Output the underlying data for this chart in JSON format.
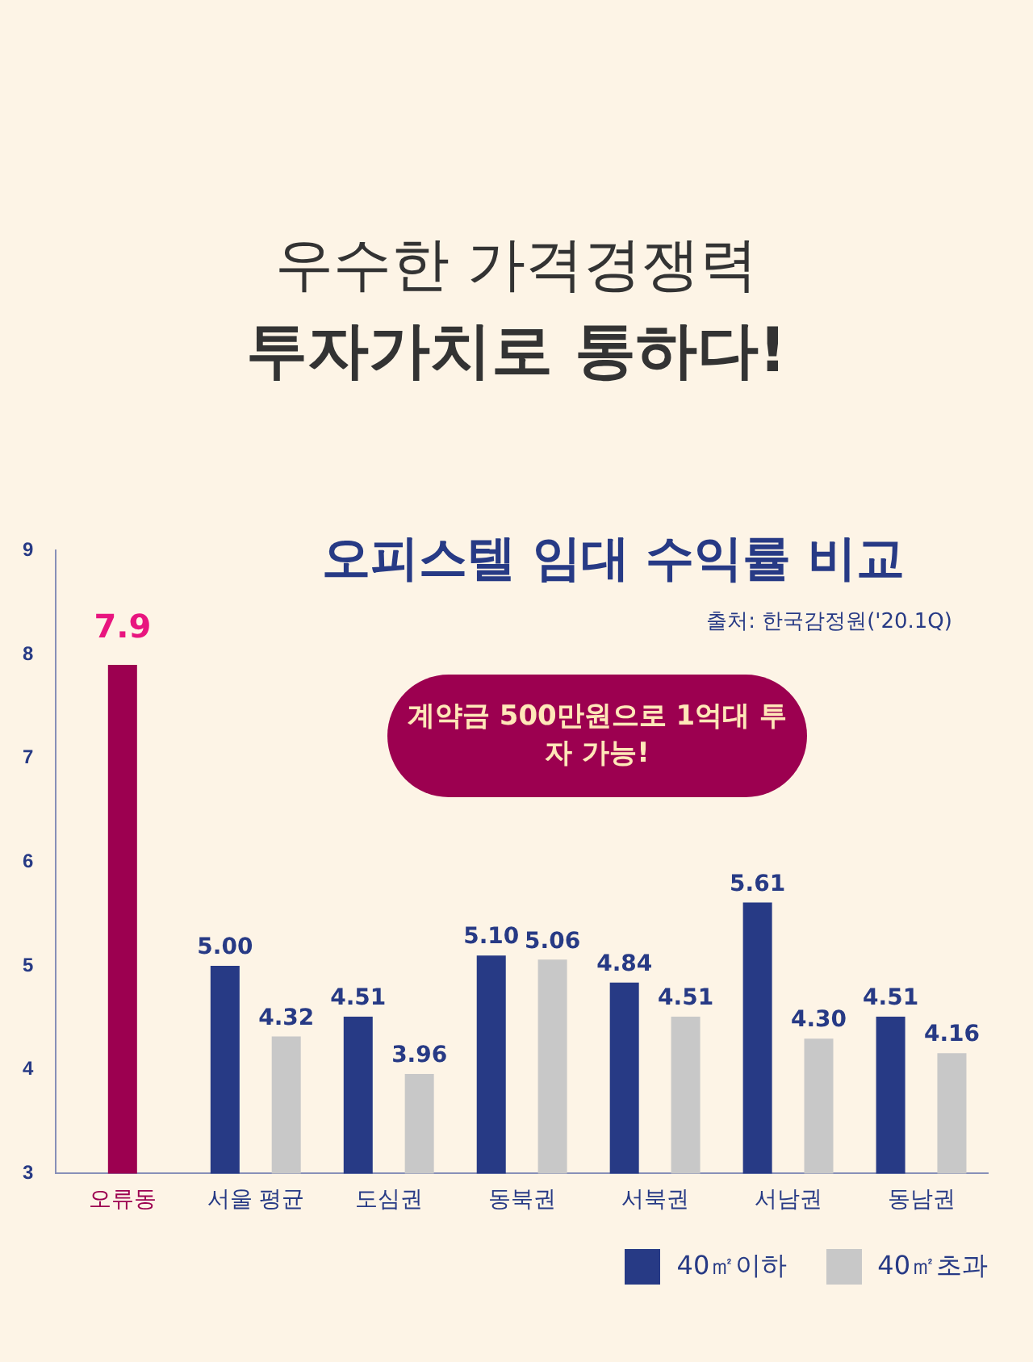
{
  "chart_data": {
    "type": "bar",
    "title": "오피스텔 임대 수익률 비교",
    "annotations": [
      "우수한 가격경쟁력",
      "투자가치로 통하다!",
      "출처: 한국감정원('20.1Q)",
      "계약금 500만원으로 1억대 투자 가능!"
    ],
    "categories": [
      "오류동",
      "서울 평균",
      "도심권",
      "동북권",
      "서북권",
      "서남권",
      "동남권"
    ],
    "series": [
      {
        "name": "40㎡이하",
        "color": "#273a85",
        "colors": [
          "#9c0050",
          "#273a85",
          "#273a85",
          "#273a85",
          "#273a85",
          "#273a85",
          "#273a85"
        ],
        "values": [
          7.9,
          5.0,
          4.51,
          5.1,
          4.84,
          5.61,
          4.51
        ],
        "value_labels": [
          "7.9",
          "5.00",
          "4.51",
          "5.10",
          "4.84",
          "5.61",
          "4.51"
        ]
      },
      {
        "name": "40㎡초과",
        "color": "#c8c8c8",
        "values": [
          null,
          4.32,
          3.96,
          5.06,
          4.51,
          4.3,
          4.16
        ],
        "value_labels": [
          null,
          "4.32",
          "3.96",
          "5.06",
          "4.51",
          "4.30",
          "4.16"
        ]
      }
    ],
    "ylim": [
      3,
      9
    ],
    "yticks": [
      3,
      4,
      5,
      6,
      7,
      8,
      9
    ],
    "grid": false,
    "legend": "bottom right"
  }
}
